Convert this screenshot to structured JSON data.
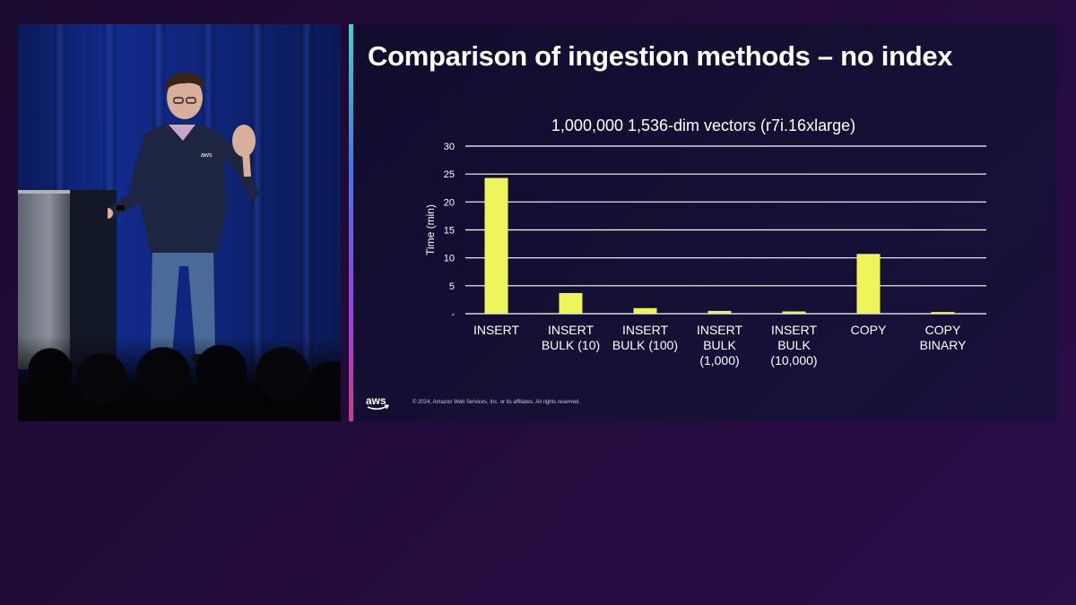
{
  "slide": {
    "title": "Comparison of ingestion methods – no index",
    "copyright": "© 2024, Amazon Web Services, Inc. or its affiliates. All rights reserved.",
    "logo_text": "aws"
  },
  "stage": {
    "shirt_logo": "aws"
  },
  "chart_data": {
    "type": "bar",
    "title": "1,000,000 1,536-dim vectors (r7i.16xlarge)",
    "xlabel": "",
    "ylabel": "Time (min)",
    "ylim": [
      0,
      30
    ],
    "yticks": [
      {
        "value": 0,
        "label": "-"
      },
      {
        "value": 5,
        "label": "5"
      },
      {
        "value": 10,
        "label": "10"
      },
      {
        "value": 15,
        "label": "15"
      },
      {
        "value": 20,
        "label": "20"
      },
      {
        "value": 25,
        "label": "25"
      },
      {
        "value": 30,
        "label": "30"
      }
    ],
    "categories": [
      [
        "INSERT"
      ],
      [
        "INSERT",
        "BULK (10)"
      ],
      [
        "INSERT",
        "BULK (100)"
      ],
      [
        "INSERT",
        "BULK",
        "(1,000)"
      ],
      [
        "INSERT",
        "BULK",
        "(10,000)"
      ],
      [
        "COPY"
      ],
      [
        "COPY",
        "BINARY"
      ]
    ],
    "values": [
      24.3,
      3.7,
      1.0,
      0.5,
      0.4,
      10.7,
      0.3
    ],
    "grid": true,
    "legend": "none",
    "bar_color": "#eef55a",
    "grid_color": "#ffffff",
    "text_color": "#ffffff"
  },
  "colors": {
    "background": "#1e0b36",
    "slide_background": "#141033",
    "accent_gradient": [
      "#2de0c8",
      "#3a7bf0",
      "#9b3cf0",
      "#e0338a"
    ]
  }
}
